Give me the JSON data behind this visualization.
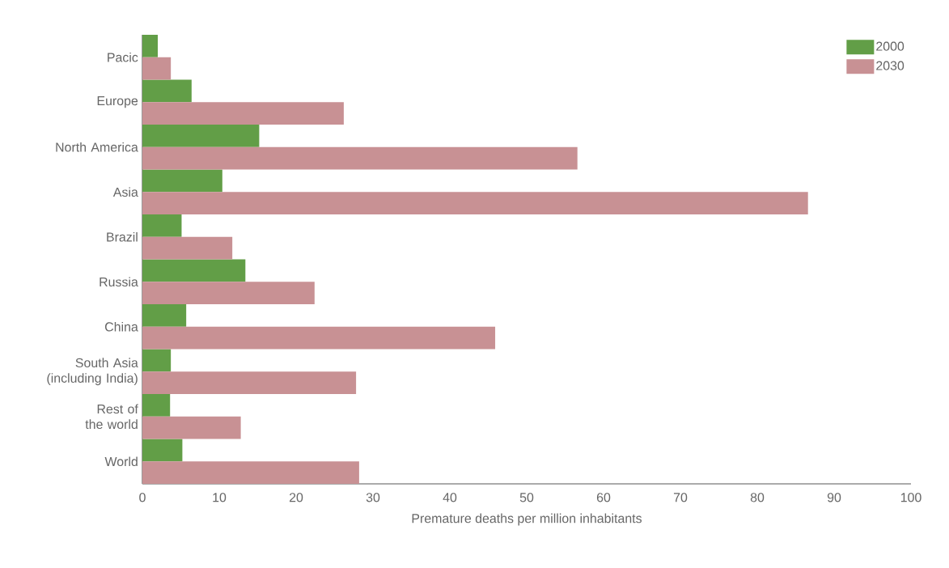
{
  "chart_data": {
    "type": "bar",
    "orientation": "horizontal",
    "xlabel": "Premature deaths per million inhabitants",
    "categories": [
      "Pacic",
      "Europe",
      "North America",
      "Asia",
      "Brazil",
      "Russia",
      "China",
      "South Asia (including India)",
      "Rest of the world",
      "World"
    ],
    "series": [
      {
        "name": "2000",
        "color": "#629e47",
        "values": [
          2.0,
          6.4,
          15.2,
          10.4,
          5.1,
          13.4,
          5.7,
          3.7,
          3.6,
          5.2
        ]
      },
      {
        "name": "2030",
        "color": "#c89194",
        "values": [
          3.7,
          26.2,
          56.6,
          86.6,
          11.7,
          22.4,
          45.9,
          27.8,
          12.8,
          28.2
        ]
      }
    ],
    "xlim": [
      0,
      100
    ],
    "xticks": [
      0,
      10,
      20,
      30,
      40,
      50,
      60,
      70,
      80,
      90,
      100
    ],
    "grid": false,
    "legend": "top right"
  }
}
